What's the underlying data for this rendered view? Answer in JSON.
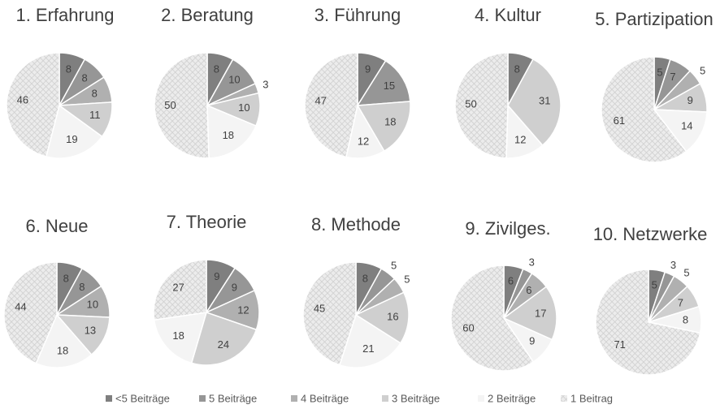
{
  "chart_data": {
    "type": "pie",
    "categories": [
      "1. Erfahrung",
      "2. Beratung",
      "3. Führung",
      "4. Kultur",
      "5. Partizipation",
      "6. Neue",
      "7. Theorie",
      "8. Methode",
      "9. Zivilges.",
      "10. Netzwerke"
    ],
    "series": [
      {
        "name": "<5 Beiträge",
        "color": "#7f7f7f",
        "values": [
          8,
          8,
          9,
          8,
          5,
          8,
          9,
          8,
          6,
          5
        ]
      },
      {
        "name": "5 Beiträge",
        "color": "#969696",
        "values": [
          8,
          10,
          15,
          null,
          7,
          8,
          9,
          5,
          3,
          3
        ]
      },
      {
        "name": "4 Beiträge",
        "color": "#b0b0b0",
        "values": [
          8,
          3,
          null,
          null,
          5,
          10,
          12,
          5,
          6,
          5
        ]
      },
      {
        "name": "3 Beiträge",
        "color": "#cfcfcf",
        "values": [
          11,
          10,
          18,
          31,
          9,
          13,
          24,
          16,
          17,
          7
        ]
      },
      {
        "name": "2 Beiträge",
        "color": "#f4f4f4",
        "values": [
          19,
          18,
          12,
          12,
          14,
          18,
          18,
          21,
          9,
          8
        ]
      },
      {
        "name": "1 Beitrag",
        "color": "#e2e2e2",
        "pattern": "crosshatch",
        "values": [
          46,
          50,
          47,
          50,
          61,
          44,
          27,
          45,
          60,
          71
        ]
      }
    ]
  }
}
